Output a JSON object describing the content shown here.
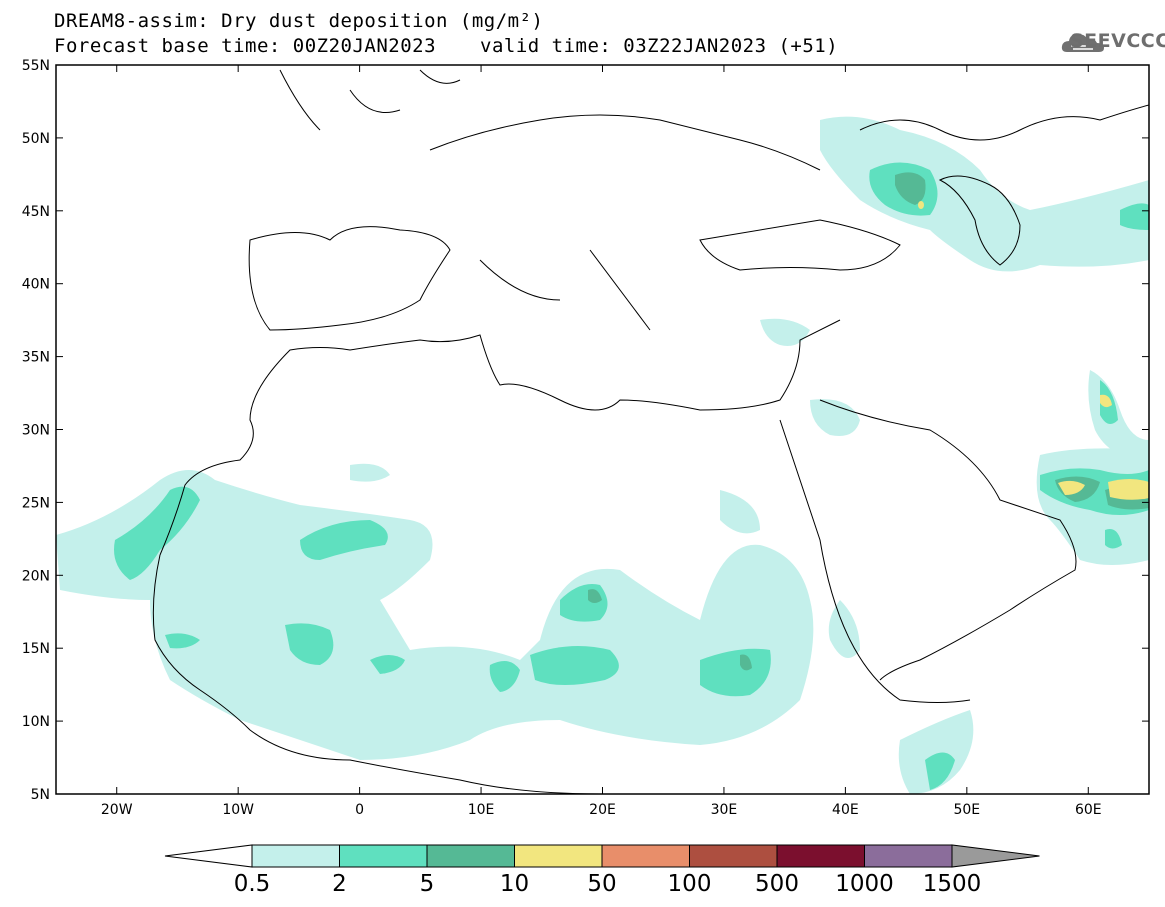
{
  "title": {
    "line1": "DREAM8-assim: Dry dust deposition (mg/m²)",
    "line2_left": "Forecast base time: 00Z20JAN2023",
    "line2_right": "valid time: 03Z22JAN2023 (+51)"
  },
  "logo": {
    "text": "SEEVCCC",
    "icon": "cloud-icon"
  },
  "map": {
    "lat_range": [
      5,
      55
    ],
    "lon_range": [
      -25,
      65
    ],
    "lat_ticks": [
      "55N",
      "50N",
      "45N",
      "40N",
      "35N",
      "30N",
      "25N",
      "20N",
      "15N",
      "10N",
      "5N"
    ],
    "lon_ticks": [
      "20W",
      "10W",
      "0",
      "10E",
      "20E",
      "30E",
      "40E",
      "50E",
      "60E"
    ]
  },
  "colorbar": {
    "levels": [
      "0.5",
      "2",
      "5",
      "10",
      "50",
      "100",
      "500",
      "1000",
      "1500"
    ],
    "colors": [
      "#c4f0eb",
      "#5fe0bf",
      "#55b995",
      "#f2e67f",
      "#e88e6a",
      "#ad4f40",
      "#7b0f2e",
      "#8b6d9b",
      "#9a9a9a"
    ]
  }
}
